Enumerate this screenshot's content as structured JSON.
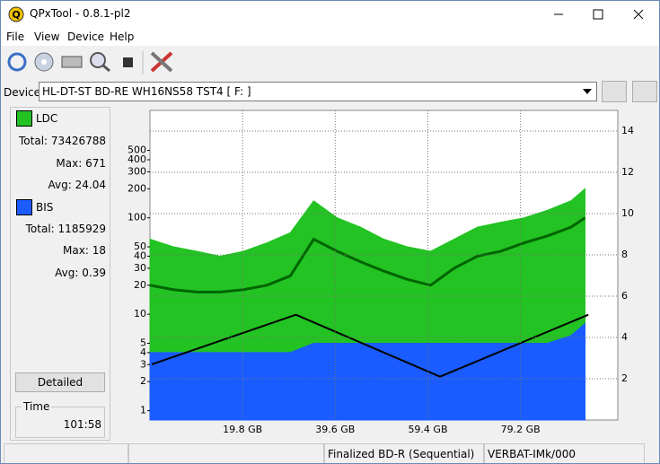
{
  "window": {
    "title": "QPxTool - 0.8.1-pl2"
  },
  "menu": [
    "File",
    "View",
    "Device",
    "Help"
  ],
  "device": {
    "label": "Device:",
    "value": "HL-DT-ST BD-RE  WH16NS58  TST4 [ F: ]"
  },
  "stats": [
    [
      {
        "label": "Total:",
        "value": "73426788"
      },
      {
        "label": "Max:",
        "value": "671"
      },
      {
        "label": "Avg:",
        "value": "24.04"
      }
    ],
    [
      {
        "label": "Total:",
        "value": "1185929"
      },
      {
        "label": "Max:",
        "value": "18"
      },
      {
        "label": "Avg:",
        "value": "0.39"
      }
    ]
  ],
  "detailed_button": "Detailed",
  "time": {
    "label": "Time",
    "value": "101:58"
  },
  "status": {
    "disc": "Finalized BD-R (Sequential)",
    "media": "VERBAT-IMk/000"
  },
  "chart_data": {
    "type": "area",
    "x": [
      0,
      5,
      10,
      15,
      20,
      25,
      30,
      35,
      40,
      45,
      50,
      55,
      60,
      65,
      70,
      75,
      80,
      85,
      90,
      93
    ],
    "series": [
      {
        "name": "LDC",
        "color": "#22c322",
        "values": [
          60,
          50,
          45,
          40,
          45,
          55,
          70,
          150,
          100,
          80,
          60,
          50,
          45,
          60,
          80,
          90,
          100,
          120,
          150,
          200
        ]
      },
      {
        "color": "#006400",
        "values": [
          20,
          18,
          17,
          17,
          18,
          20,
          25,
          60,
          45,
          35,
          28,
          23,
          20,
          30,
          40,
          45,
          55,
          65,
          80,
          100
        ]
      },
      {
        "name": "BIS",
        "color": "#1a5cff",
        "values": [
          4,
          4,
          4,
          4,
          4,
          4,
          4,
          5,
          5,
          5,
          5,
          5,
          5,
          5,
          5,
          5,
          5,
          5,
          6,
          8
        ]
      },
      {
        "color": "#000000",
        "axis": "y2",
        "x": [
          0.4,
          31.2,
          62,
          93.7
        ],
        "values": [
          2.7,
          5.1,
          2.1,
          5.1
        ]
      }
    ],
    "log_y": true,
    "xlim": [
      0,
      100
    ],
    "ylim": [
      0.8,
      1300
    ],
    "y2lim": [
      0,
      15
    ],
    "xticks": [
      {
        "value": 19.8,
        "label": "19.8 GB"
      },
      {
        "value": 39.6,
        "label": "39.6 GB"
      },
      {
        "value": 59.4,
        "label": "59.4 GB"
      },
      {
        "value": 79.2,
        "label": "79.2 GB"
      }
    ],
    "yticks": [
      1,
      2,
      3,
      4,
      5,
      10,
      20,
      30,
      40,
      50,
      100,
      200,
      300,
      400,
      500
    ],
    "y2ticks": [
      2,
      4,
      6,
      8,
      10,
      12,
      14
    ],
    "grid": true
  }
}
